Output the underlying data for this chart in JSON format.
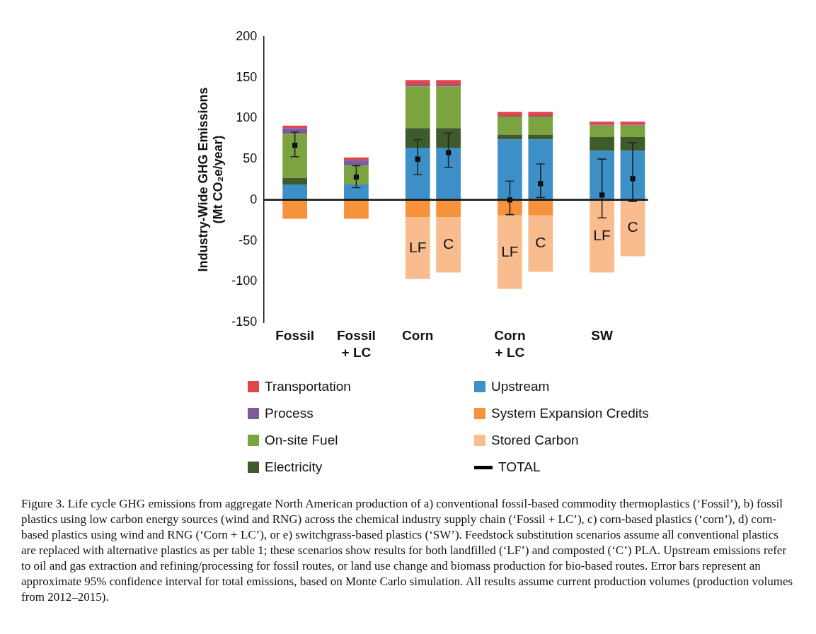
{
  "chart_data": {
    "type": "bar",
    "stacked": true,
    "ylabel": "Industry-Wide GHG Emissions\n(Mt CO₂e/year)",
    "categories": [
      null,
      "Fossil",
      null,
      "Fossil\n+ LC",
      null,
      "Corn",
      null,
      null,
      "Corn\n+ LC",
      null,
      null,
      "SW",
      null
    ],
    "ylim": [
      -150,
      200
    ],
    "yticks": [
      -150,
      -100,
      -50,
      0,
      50,
      100,
      150,
      200
    ],
    "grid": false,
    "legend": "bottom",
    "ref_lines": [
      {
        "axis": "y",
        "value": 0,
        "color": "#111111"
      }
    ],
    "series": [
      {
        "name": "Upstream",
        "color": "#3d8fc8",
        "values": [
          null,
          19,
          null,
          19,
          null,
          64,
          64,
          null,
          74,
          74,
          null,
          60,
          60
        ]
      },
      {
        "name": "Electricity",
        "color": "#3e5b2c",
        "values": [
          null,
          8,
          null,
          0,
          null,
          24,
          24,
          null,
          6,
          6,
          null,
          17,
          17
        ]
      },
      {
        "name": "On-site Fuel",
        "color": "#7ba441",
        "values": [
          null,
          54,
          null,
          23,
          null,
          51,
          51,
          null,
          22,
          22,
          null,
          14,
          14
        ]
      },
      {
        "name": "Process",
        "color": "#7e5a9b",
        "values": [
          null,
          7,
          null,
          7,
          null,
          2,
          2,
          null,
          1,
          1,
          null,
          1,
          1
        ]
      },
      {
        "name": "Transportation",
        "color": "#e0474c",
        "values": [
          null,
          3,
          null,
          3,
          null,
          6,
          6,
          null,
          5,
          5,
          null,
          4,
          4
        ]
      },
      {
        "name": "System Expansion Credits",
        "color": "#f6913c",
        "values": [
          null,
          -23,
          null,
          -23,
          null,
          -21,
          -21,
          null,
          -19,
          -19,
          null,
          0,
          0
        ]
      },
      {
        "name": "Stored Carbon",
        "color": "#f9bc8f",
        "values": [
          null,
          0,
          null,
          0,
          null,
          -76,
          -68,
          null,
          -90,
          -69,
          null,
          -89,
          -69
        ],
        "value_labels": [
          null,
          null,
          null,
          null,
          null,
          "LF",
          "C",
          null,
          "LF",
          "C",
          null,
          "LF",
          "C"
        ]
      },
      {
        "name": "TOTAL",
        "type": "scatter",
        "marker": "square",
        "color": "#000000",
        "values": [
          null,
          67,
          null,
          28,
          null,
          50,
          58,
          null,
          0,
          20,
          null,
          6,
          26
        ],
        "errors": [
          null,
          [
            53,
            83
          ],
          null,
          [
            15,
            42
          ],
          null,
          [
            31,
            74
          ],
          [
            40,
            82
          ],
          null,
          [
            -18,
            23
          ],
          [
            3,
            44
          ],
          null,
          [
            -22,
            50
          ],
          [
            -2,
            70
          ]
        ]
      }
    ],
    "annotations": [
      "Figure 3. Life cycle GHG emissions from aggregate North American production of a) conventional fossil-based commodity thermoplastics (‘Fossil’), b) fossil plastics using low carbon energy sources (wind and RNG) across the chemical industry supply chain (‘Fossil + LC’), c) corn-based plastics (‘corn’), d) corn-based plastics using wind and RNG (‘Corn + LC’), or e) switchgrass-based plastics (‘SW’). Feedstock substitution scenarios assume all conventional plastics are replaced with alternative plastics as per table 1; these scenarios show results for both landfilled (‘LF’) and composted (‘C’) PLA. Upstream emissions refer to oil and gas extraction and refining/processing for fossil routes, or land use change and biomass production for bio-based routes. Error bars represent an approximate 95% confidence interval for total emissions, based on Monte Carlo simulation. All results assume current production volumes (production volumes from 2012–2015)."
    ]
  }
}
